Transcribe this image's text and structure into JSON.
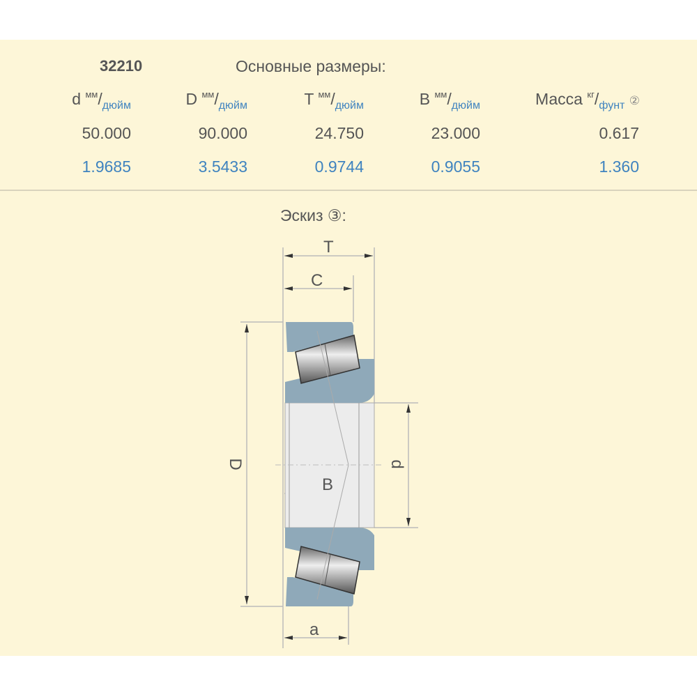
{
  "model": "32210",
  "title": "Основные размеры:",
  "columns": [
    {
      "symbol": "d",
      "unit_top": "мм",
      "unit_bottom": "дюйм",
      "mm": "50.000",
      "inch": "1.9685"
    },
    {
      "symbol": "D",
      "unit_top": "мм",
      "unit_bottom": "дюйм",
      "mm": "90.000",
      "inch": "3.5433"
    },
    {
      "symbol": "T",
      "unit_top": "мм",
      "unit_bottom": "дюйм",
      "mm": "24.750",
      "inch": "0.9744"
    },
    {
      "symbol": "B",
      "unit_top": "мм",
      "unit_bottom": "дюйм",
      "mm": "23.000",
      "inch": "0.9055"
    }
  ],
  "mass": {
    "label": "Масса",
    "unit_top": "кг",
    "unit_bottom": "фунт",
    "note": "②",
    "kg": "0.617",
    "lb": "1.360"
  },
  "sketch": {
    "label": "Эскиз ③:",
    "dims": {
      "T": "T",
      "C": "C",
      "D": "D",
      "d": "d",
      "B": "B",
      "a": "a"
    }
  },
  "colors": {
    "background": "#fdf6d8",
    "ring": "#8fa9b9",
    "accent": "#3f83bf"
  }
}
